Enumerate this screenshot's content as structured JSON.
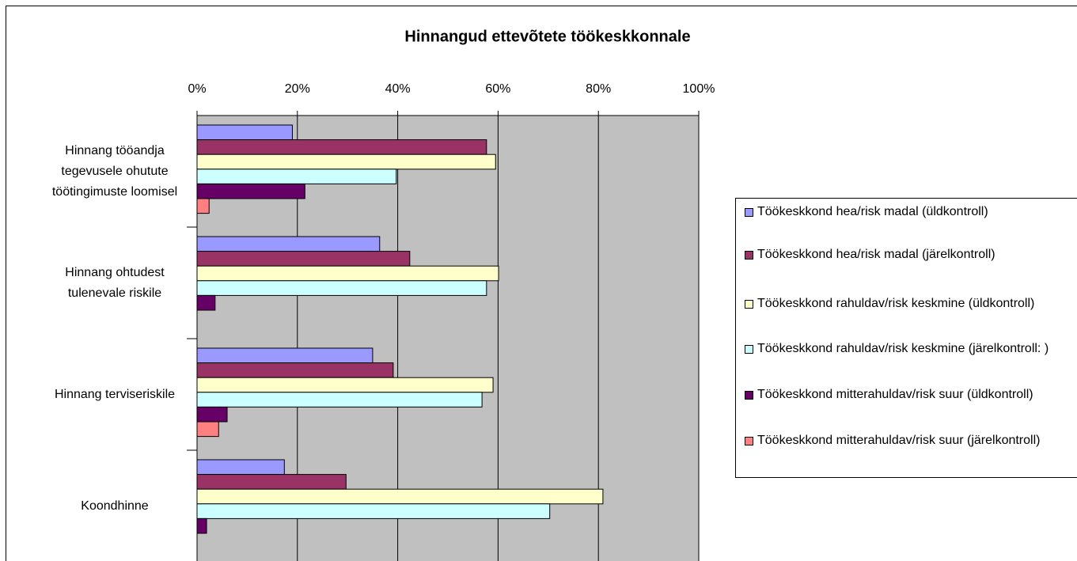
{
  "chart_data": {
    "type": "hbar",
    "title": "Hinnangud ettevõtete töökeskkonnale",
    "categories": [
      "Hinnang tööandja tegevusele ohutute töötingimuste loomisel",
      "Hinnang ohtudest tulenevale riskile",
      "Hinnang terviseriskile",
      "Koondhinne"
    ],
    "series": [
      {
        "name": "Töökeskkond hea/risk madal (üldkontroll)",
        "color": "#9999ff",
        "values": [
          19,
          36.4,
          35,
          17.4
        ]
      },
      {
        "name": "Töökeskkond hea/risk madal (järelkontroll)",
        "color": "#993366",
        "values": [
          57.7,
          42.4,
          39.1,
          29.7
        ]
      },
      {
        "name": "Töökeskkond rahuldav/risk keskmine (üldkontroll)",
        "color": "#ffffcc",
        "values": [
          59.5,
          60.1,
          59,
          80.9
        ]
      },
      {
        "name": "Töökeskkond rahuldav/risk keskmine (järelkontroll: )",
        "color": "#ccffff",
        "values": [
          39.7,
          57.7,
          56.8,
          70.3
        ]
      },
      {
        "name": "Töökeskkond mitterahuldav/risk suur (üldkontroll)",
        "color": "#660066",
        "values": [
          21.5,
          3.6,
          6,
          1.9
        ]
      },
      {
        "name": "Töökeskkond mitterahuldav/risk suur (järelkontroll)",
        "color": "#ff8080",
        "values": [
          2.4,
          0,
          4.3,
          0
        ]
      }
    ],
    "xlim": [
      0,
      100
    ],
    "xticks": [
      {
        "value": 0,
        "label": "0%"
      },
      {
        "value": 20,
        "label": "20%"
      },
      {
        "value": 40,
        "label": "40%"
      },
      {
        "value": 60,
        "label": "60%"
      },
      {
        "value": 80,
        "label": "80%"
      },
      {
        "value": 100,
        "label": "100%"
      }
    ],
    "grid": true,
    "legend": "right"
  }
}
